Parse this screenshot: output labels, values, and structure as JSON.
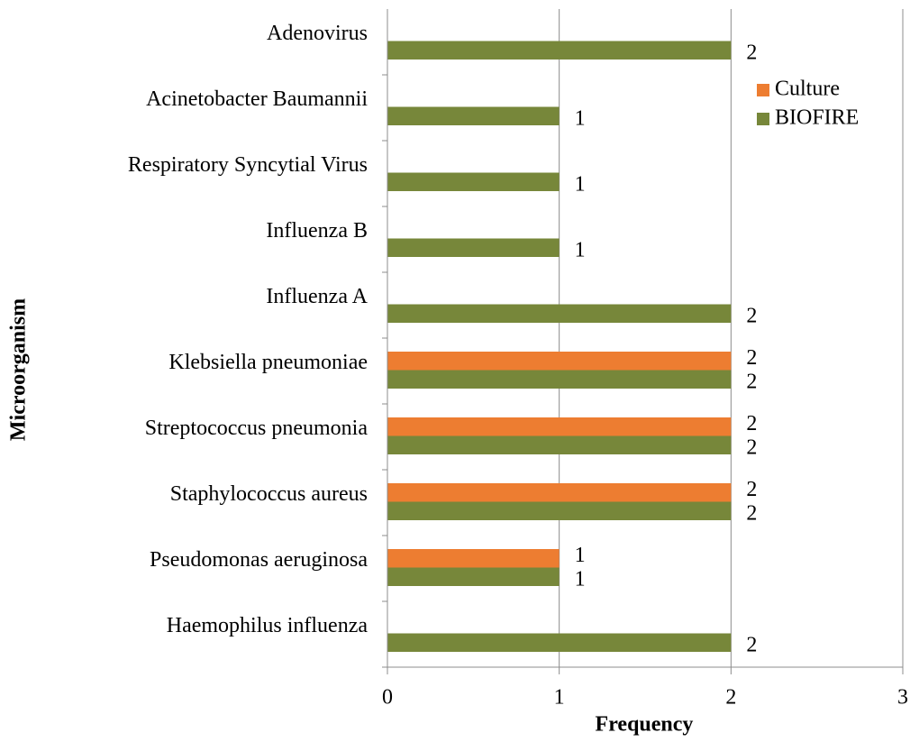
{
  "chart_data": {
    "type": "bar",
    "orientation": "horizontal",
    "x_label": "Frequency",
    "y_label": "Microorganism",
    "categories": [
      "Haemophilus influenza",
      "Pseudomonas aeruginosa",
      "Staphylococcus aureus",
      "Streptococcus pneumonia",
      "Klebsiella pneumoniae",
      "Influenza A",
      "Influenza B",
      "Respiratory Syncytial Virus",
      "Acinetobacter Baumannii",
      "Adenovirus"
    ],
    "series": [
      {
        "name": "Culture",
        "color": "#ed7d31",
        "values": [
          null,
          1,
          2,
          2,
          2,
          null,
          null,
          null,
          null,
          null
        ]
      },
      {
        "name": "BIOFIRE",
        "color": "#77873a",
        "values": [
          2,
          1,
          2,
          2,
          2,
          2,
          1,
          1,
          1,
          2
        ]
      }
    ],
    "xlim": [
      0,
      3
    ],
    "xticks": [
      0,
      1,
      2,
      3
    ],
    "grid": true,
    "legend": "right"
  }
}
